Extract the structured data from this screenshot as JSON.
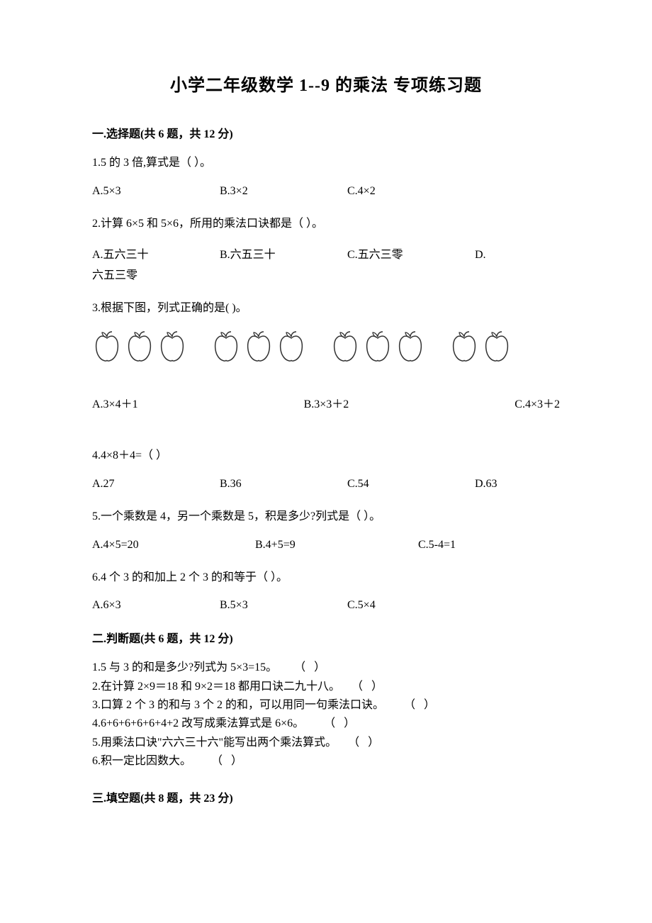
{
  "title": "小学二年级数学 1--9 的乘法 专项练习题",
  "section1": {
    "header": "一.选择题(共 6 题，共 12 分)",
    "q1": {
      "text": "1.5 的 3 倍,算式是（    ）。",
      "a": "A.5×3",
      "b": "B.3×2",
      "c": "C.4×2"
    },
    "q2": {
      "text": "2.计算 6×5 和 5×6，所用的乘法口诀都是（   ）。",
      "a": "A.五六三十",
      "b": "B.六五三十",
      "c": "C.五六三零",
      "d": "D.",
      "d_wrap": "六五三零"
    },
    "q3": {
      "text": "3.根据下图，列式正确的是(     )。",
      "a": "A.3×4＋1",
      "b": "B.3×3＋2",
      "c": "C.4×3＋2"
    },
    "q4": {
      "text": "4.4×8＋4=（   ）",
      "a": "A.27",
      "b": "B.36",
      "c": "C.54",
      "d": "D.63"
    },
    "q5": {
      "text": "5.一个乘数是 4，另一个乘数是 5，积是多少?列式是（   ）。",
      "a": "A.4×5=20",
      "b": "B.4+5=9",
      "c": "C.5-4=1"
    },
    "q6": {
      "text": "6.4 个 3 的和加上 2 个 3 的和等于（   ）。",
      "a": "A.6×3",
      "b": "B.5×3",
      "c": "C.5×4"
    }
  },
  "section2": {
    "header": "二.判断题(共 6 题，共 12 分)",
    "items": [
      "1.5 与 3 的和是多少?列式为 5×3=15。      （   ）",
      "2.在计算 2×9＝18 和 9×2＝18 都用口诀二九十八。    （   ）",
      "3.口算 2 个 3 的和与 3 个 2 的和，可以用同一句乘法口诀。       （   ）",
      "4.6+6+6+6+6+4+2 改写成乘法算式是 6×6。       （   ）",
      "5.用乘法口诀\"六六三十六\"能写出两个乘法算式。    （   ）",
      "6.积一定比因数大。       （   ）"
    ]
  },
  "section3": {
    "header": "三.填空题(共 8 题，共 23 分)"
  },
  "apple_groups": [
    3,
    3,
    3,
    2
  ],
  "colors": {
    "text": "#000000",
    "background": "#ffffff",
    "apple_stroke": "#333333"
  }
}
